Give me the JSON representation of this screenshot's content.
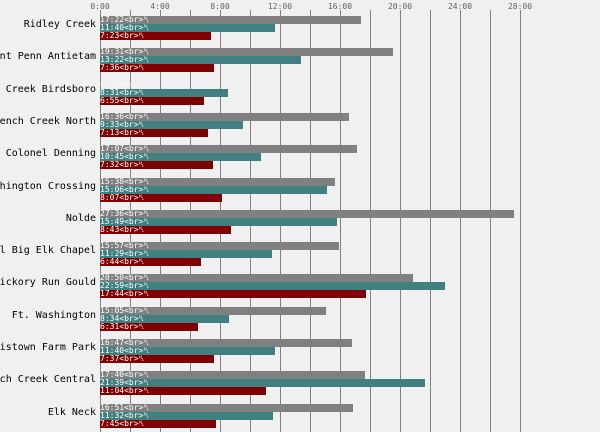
{
  "chart_data": {
    "type": "bar",
    "orientation": "horizontal",
    "x_unit": "hours:minutes",
    "xlim": [
      "0:00",
      "28:00"
    ],
    "x_ticks": [
      "0:00",
      "4:00",
      "8:00",
      "12:00",
      "16:00",
      "20:00",
      "24:00",
      "28:00"
    ],
    "grid": true,
    "label_suffix": "<br>␤",
    "colors": [
      "#808080",
      "#408080",
      "#800000"
    ],
    "categories": [
      "Ridley Creek",
      "nt Penn Antietam",
      "Creek Birdsboro",
      "ench Creek North",
      "Colonel Denning",
      "hington Crossing",
      "Nolde",
      "l Big Elk Chapel",
      "ickory Run Gould",
      "Ft. Washington",
      "istown Farm Park",
      "ch Creek Central",
      "Elk Neck"
    ],
    "series": [
      {
        "values": [
          "17:22",
          "19:31",
          "0:00",
          "16:36",
          "17:07",
          "15:38",
          "27:36",
          "15:57",
          "20:50",
          "15:05",
          "16:47",
          "17:40",
          "16:51"
        ]
      },
      {
        "values": [
          "11:40",
          "13:22",
          "8:31",
          "9:33",
          "10:45",
          "15:06",
          "15:49",
          "11:29",
          "22:59",
          "8:34",
          "11:40",
          "21:39",
          "11:32"
        ]
      },
      {
        "values": [
          "7:23",
          "7:36",
          "6:55",
          "7:13",
          "7:32",
          "8:07",
          "8:43",
          "6:44",
          "17:44",
          "6:31",
          "7:37",
          "11:04",
          "7:45"
        ]
      }
    ]
  }
}
